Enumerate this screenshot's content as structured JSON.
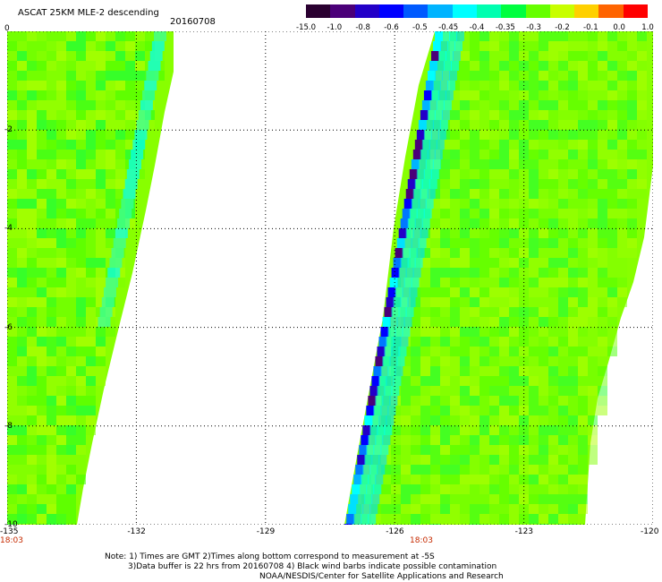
{
  "header": {
    "title": "ASCAT 25KM MLE-2 descending",
    "date": "20160708"
  },
  "colorbar": {
    "labels": [
      "-15.0",
      "-1.0",
      "-0.8",
      "-0.6",
      "-0.5",
      "-0.45",
      "-0.4",
      "-0.35",
      "-0.3",
      "-0.2",
      "-0.1",
      "0.0",
      "1.0"
    ],
    "colors": [
      "#2a0030",
      "#4b0079",
      "#2300c8",
      "#0000ff",
      "#005aff",
      "#00b4ff",
      "#00ffff",
      "#00ffb0",
      "#00ff40",
      "#66ff00",
      "#c8ff00",
      "#ffd000",
      "#ff6400",
      "#ff0000"
    ]
  },
  "axes": {
    "x_ticks": [
      "-135",
      "-132",
      "-129",
      "-126",
      "-123",
      "-120"
    ],
    "y_ticks": [
      "0",
      "-2",
      "-4",
      "-6",
      "-8",
      "-10"
    ],
    "x_range": [
      -135,
      -120
    ],
    "y_range": [
      0,
      -10
    ]
  },
  "times": {
    "left": "18:03",
    "right": "18:03"
  },
  "notes": {
    "line1": "Note: 1) Times are GMT 2)Times along bottom correspond to measurement at -5S",
    "line2": "3)Data buffer is 22 hrs from 20160708 4) Black wind barbs indicate possible contamination",
    "line3": "NOAA/NESDIS/Center for Satellite Applications and Research"
  }
}
